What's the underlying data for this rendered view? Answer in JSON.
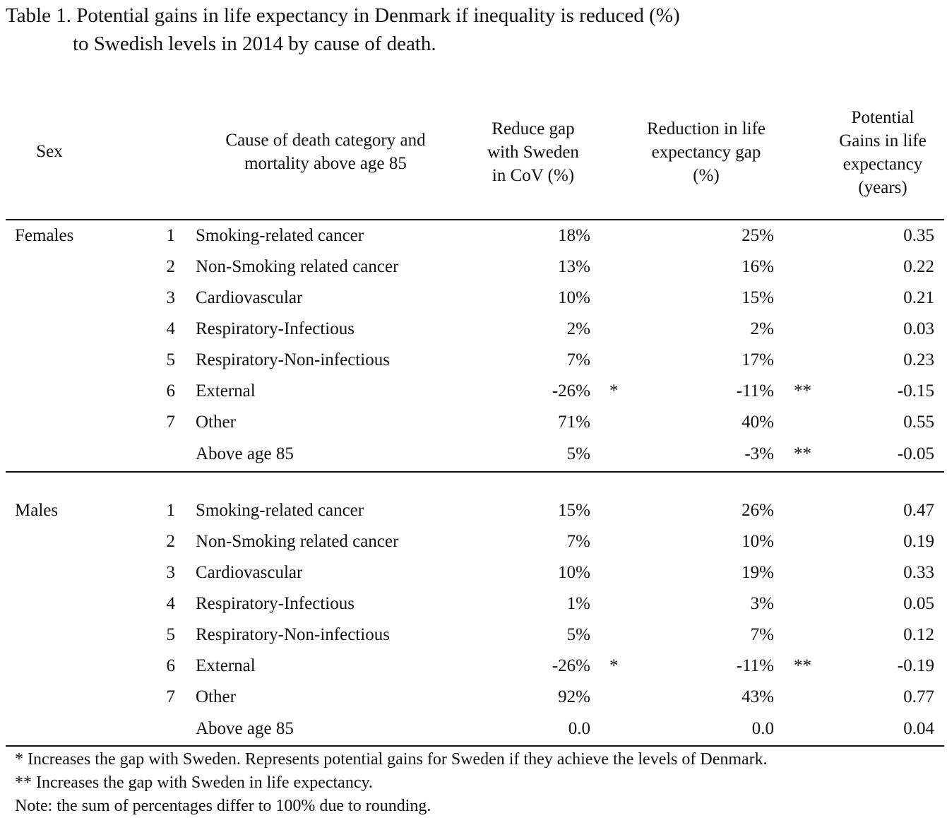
{
  "title": {
    "line1": "Table 1. Potential gains in life expectancy in Denmark if inequality is reduced (%)",
    "line2": "to Swedish levels in 2014 by cause of death."
  },
  "header": {
    "sex": "Sex",
    "cause": [
      "Cause of death category and",
      "mortality above age 85"
    ],
    "cov": [
      "Reduce gap",
      "with Sweden",
      "in CoV (%)"
    ],
    "reduction": [
      "Reduction in life",
      "expectancy gap",
      "(%)"
    ],
    "gains": [
      "Potential",
      "Gains in life",
      "expectancy",
      "(years)"
    ]
  },
  "females": {
    "label": "Females",
    "rows": [
      {
        "num": "1",
        "cause": "Smoking-related cancer",
        "cov": "18%",
        "star1": "",
        "reduction": "25%",
        "star2": "",
        "gain": "0.35"
      },
      {
        "num": "2",
        "cause": "Non-Smoking related cancer",
        "cov": "13%",
        "star1": "",
        "reduction": "16%",
        "star2": "",
        "gain": "0.22"
      },
      {
        "num": "3",
        "cause": "Cardiovascular",
        "cov": "10%",
        "star1": "",
        "reduction": "15%",
        "star2": "",
        "gain": "0.21"
      },
      {
        "num": "4",
        "cause": "Respiratory-Infectious",
        "cov": "2%",
        "star1": "",
        "reduction": "2%",
        "star2": "",
        "gain": "0.03"
      },
      {
        "num": "5",
        "cause": "Respiratory-Non-infectious",
        "cov": "7%",
        "star1": "",
        "reduction": "17%",
        "star2": "",
        "gain": "0.23"
      },
      {
        "num": "6",
        "cause": "External",
        "cov": "-26%",
        "star1": "*",
        "reduction": "-11%",
        "star2": "**",
        "gain": "-0.15"
      },
      {
        "num": "7",
        "cause": "Other",
        "cov": "71%",
        "star1": "",
        "reduction": "40%",
        "star2": "",
        "gain": "0.55"
      },
      {
        "num": "",
        "cause": "Above age 85",
        "cov": "5%",
        "star1": "",
        "reduction": "-3%",
        "star2": "**",
        "gain": "-0.05"
      }
    ]
  },
  "males": {
    "label": "Males",
    "rows": [
      {
        "num": "1",
        "cause": "Smoking-related cancer",
        "cov": "15%",
        "star1": "",
        "reduction": "26%",
        "star2": "",
        "gain": "0.47"
      },
      {
        "num": "2",
        "cause": "Non-Smoking related cancer",
        "cov": "7%",
        "star1": "",
        "reduction": "10%",
        "star2": "",
        "gain": "0.19"
      },
      {
        "num": "3",
        "cause": "Cardiovascular",
        "cov": "10%",
        "star1": "",
        "reduction": "19%",
        "star2": "",
        "gain": "0.33"
      },
      {
        "num": "4",
        "cause": "Respiratory-Infectious",
        "cov": "1%",
        "star1": "",
        "reduction": "3%",
        "star2": "",
        "gain": "0.05"
      },
      {
        "num": "5",
        "cause": "Respiratory-Non-infectious",
        "cov": "5%",
        "star1": "",
        "reduction": "7%",
        "star2": "",
        "gain": "0.12"
      },
      {
        "num": "6",
        "cause": "External",
        "cov": "-26%",
        "star1": "*",
        "reduction": "-11%",
        "star2": "**",
        "gain": "-0.19"
      },
      {
        "num": "7",
        "cause": "Other",
        "cov": "92%",
        "star1": "",
        "reduction": "43%",
        "star2": "",
        "gain": "0.77"
      },
      {
        "num": "",
        "cause": "Above age 85",
        "cov": "0.0",
        "star1": "",
        "reduction": "0.0",
        "star2": "",
        "gain": "0.04"
      }
    ]
  },
  "notes": [
    "*   Increases the gap with Sweden. Represents potential gains for Sweden if they achieve the levels of Denmark.",
    "** Increases the gap with Sweden in life expectancy.",
    "Note: the sum of percentages differ to 100% due to rounding."
  ]
}
